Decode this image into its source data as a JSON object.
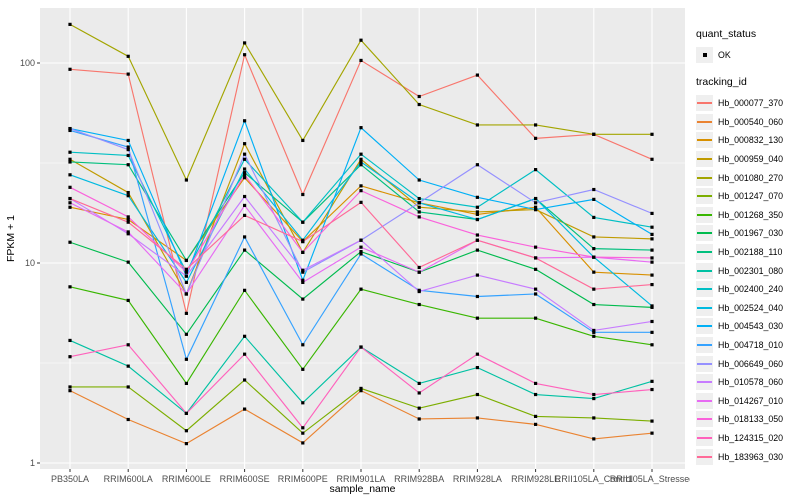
{
  "figure": {
    "x_axis_label": "sample_name",
    "y_axis_label": "FPKM + 1",
    "y_ticks": [
      "1",
      "10",
      "100"
    ]
  },
  "legend": {
    "quant_status": {
      "title": "quant_status",
      "items": [
        "OK"
      ]
    },
    "tracking": {
      "title": "tracking_id"
    }
  },
  "colors": {
    "panel_background": "#EBEBEB",
    "gridline": "#FFFFFF",
    "point": "#000000",
    "tick_text": "#4D4D4D",
    "axis_title_text": "#000000",
    "tick_mark": "#333333",
    "legend_key_background": "#EFEFEF"
  },
  "chart_data": {
    "type": "line",
    "title": "",
    "xlabel": "sample_name",
    "ylabel": "FPKM + 1",
    "y_scale": "log10",
    "ylim": [
      1,
      185
    ],
    "y_major_ticks": [
      1,
      10,
      100
    ],
    "y_minor_gridlines": [
      3.162,
      31.62
    ],
    "grid": "white-on-gray",
    "legend_position": "right",
    "point_marker": "black-square",
    "categories": [
      "PB350LA",
      "RRIM600LA",
      "RRIM600LE",
      "RRIM600SE",
      "RRIM600PE",
      "RRIM901LA",
      "RRIM928BA",
      "RRIM928LA",
      "RRIM928LE",
      "RRII105LA_Control",
      "RRII105LA_Stressed"
    ],
    "series": [
      {
        "name": "Hb_000077_370",
        "color": "#F8766D",
        "values": [
          93,
          88,
          5.6,
          110,
          22,
          103,
          68,
          87,
          42,
          44,
          33
        ]
      },
      {
        "name": "Hb_000540_060",
        "color": "#EA8331",
        "values": [
          2.3,
          1.65,
          1.25,
          1.86,
          1.26,
          2.3,
          1.66,
          1.68,
          1.56,
          1.32,
          1.41
        ]
      },
      {
        "name": "Hb_000832_130",
        "color": "#D89000",
        "values": [
          19,
          16.5,
          10.3,
          26.7,
          12.8,
          24.3,
          20,
          17.5,
          19,
          9,
          8.7
        ]
      },
      {
        "name": "Hb_000959_040",
        "color": "#C09B00",
        "values": [
          33,
          22.5,
          7,
          39.5,
          11.3,
          33,
          19,
          18,
          18.5,
          13.5,
          13.2
        ]
      },
      {
        "name": "Hb_001080_270",
        "color": "#A3A500",
        "values": [
          156,
          108,
          26,
          126,
          41,
          130,
          62,
          49,
          49,
          44,
          44
        ]
      },
      {
        "name": "Hb_001247_070",
        "color": "#7CAE00",
        "values": [
          2.4,
          2.4,
          1.45,
          2.6,
          1.41,
          2.36,
          1.88,
          2.2,
          1.71,
          1.68,
          1.62
        ]
      },
      {
        "name": "Hb_001268_350",
        "color": "#39B600",
        "values": [
          7.6,
          6.5,
          2.5,
          7.3,
          2.94,
          7.4,
          6.2,
          5.3,
          5.3,
          4.3,
          3.9
        ]
      },
      {
        "name": "Hb_001967_030",
        "color": "#00BB4E",
        "values": [
          12.7,
          10.1,
          4.4,
          11.6,
          6.6,
          11.4,
          9,
          11.6,
          9.3,
          6.2,
          6
        ]
      },
      {
        "name": "Hb_002188_110",
        "color": "#00BF7D",
        "values": [
          32,
          31,
          10.3,
          28.3,
          16,
          31,
          18,
          16.5,
          21,
          11.8,
          11.6
        ]
      },
      {
        "name": "Hb_002301_080",
        "color": "#00C1A3",
        "values": [
          4.1,
          3.05,
          1.77,
          4.3,
          2,
          3.8,
          2.5,
          3,
          2.2,
          2.1,
          2.56
        ]
      },
      {
        "name": "Hb_002400_240",
        "color": "#00BFC4",
        "values": [
          35.8,
          34.5,
          9,
          33,
          16,
          35,
          21,
          19,
          29.3,
          16.9,
          15.1
        ]
      },
      {
        "name": "Hb_002524_040",
        "color": "#00BAE0",
        "values": [
          27.6,
          21.7,
          8,
          29.5,
          13,
          32,
          20,
          16.5,
          21,
          10.7,
          6.1
        ]
      },
      {
        "name": "Hb_004543_030",
        "color": "#00B0F6",
        "values": [
          47,
          41,
          8.6,
          51.4,
          8.2,
          47.5,
          26,
          21.3,
          18.5,
          20.8,
          13.9
        ]
      },
      {
        "name": "Hb_004718_010",
        "color": "#35A2FF",
        "values": [
          46,
          38,
          3.3,
          13.5,
          3.9,
          11.1,
          7.3,
          6.8,
          7,
          4.5,
          4.5
        ]
      },
      {
        "name": "Hb_006649_060",
        "color": "#9590FF",
        "values": [
          47,
          36.9,
          7,
          35,
          9,
          13,
          20,
          31,
          20,
          23.3,
          17.7
        ]
      },
      {
        "name": "Hb_010578_060",
        "color": "#C77CFF",
        "values": [
          21,
          14,
          8.6,
          21.5,
          9.2,
          13,
          7.2,
          8.7,
          7.4,
          4.6,
          5.1
        ]
      },
      {
        "name": "Hb_014267_010",
        "color": "#E76BF3",
        "values": [
          20,
          14.3,
          7,
          19.4,
          8,
          12,
          9,
          13,
          10.6,
          10.7,
          10.1
        ]
      },
      {
        "name": "Hb_018133_050",
        "color": "#FA62DB",
        "values": [
          23.9,
          17,
          9,
          27.6,
          11.3,
          23,
          17,
          13.8,
          12,
          10.7,
          10.6
        ]
      },
      {
        "name": "Hb_124315_020",
        "color": "#FF62BC",
        "values": [
          3.4,
          3.9,
          1.77,
          3.5,
          1.5,
          3.8,
          2.24,
          3.5,
          2.5,
          2.2,
          2.33
        ]
      },
      {
        "name": "Hb_183963_030",
        "color": "#FF6A98",
        "values": [
          21,
          16,
          9.3,
          17.3,
          12.8,
          20.1,
          9.5,
          13,
          10.6,
          7.4,
          7.8
        ]
      }
    ]
  }
}
